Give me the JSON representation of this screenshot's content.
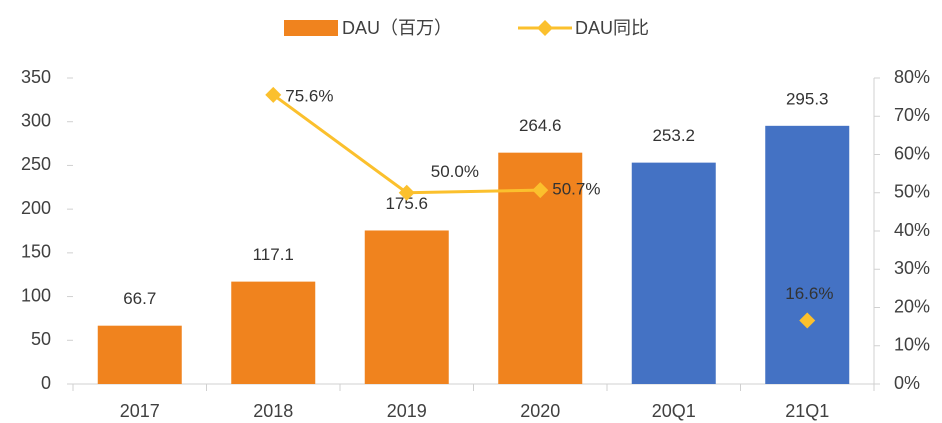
{
  "chart_data": {
    "type": "bar_line",
    "categories": [
      "2017",
      "2018",
      "2019",
      "2020",
      "20Q1",
      "21Q1"
    ],
    "series": [
      {
        "name": "DAU（百万）",
        "type": "bar",
        "color": "#f0831e",
        "colors": [
          "#f0831e",
          "#f0831e",
          "#f0831e",
          "#f0831e",
          "#4472c4",
          "#4472c4"
        ],
        "values": [
          66.7,
          117.1,
          175.6,
          264.6,
          253.2,
          295.3
        ]
      },
      {
        "name": "DAU同比",
        "type": "line",
        "axis": "y2",
        "color": "#fbc02d",
        "values": [
          null,
          75.6,
          50.0,
          50.7,
          null,
          16.6
        ],
        "value_labels": [
          null,
          "75.6%",
          "50.0%",
          "50.7%",
          null,
          "16.6%"
        ]
      }
    ],
    "ylim": [
      0,
      350
    ],
    "yticks": [
      0,
      50,
      100,
      150,
      200,
      250,
      300,
      350
    ],
    "y2lim": [
      0,
      80
    ],
    "y2ticks": [
      {
        "value": 0,
        "label": "0%"
      },
      {
        "value": 10,
        "label": "10%"
      },
      {
        "value": 20,
        "label": "20%"
      },
      {
        "value": 30,
        "label": "30%"
      },
      {
        "value": 40,
        "label": "40%"
      },
      {
        "value": 50,
        "label": "50%"
      },
      {
        "value": 60,
        "label": "60%"
      },
      {
        "value": 70,
        "label": "70%"
      },
      {
        "value": 80,
        "label": "80%"
      }
    ],
    "legend": "top"
  }
}
